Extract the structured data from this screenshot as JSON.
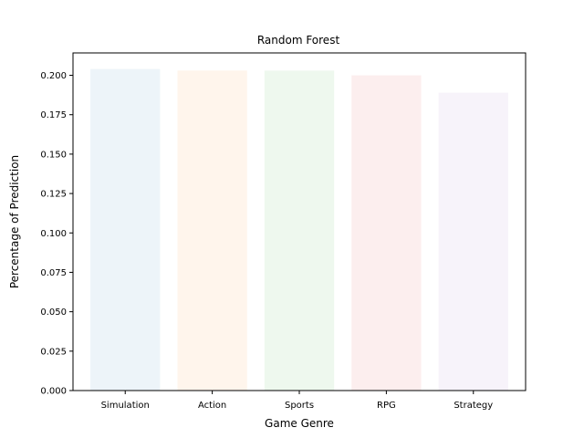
{
  "chart_data": {
    "type": "bar",
    "title": "Random Forest",
    "xlabel": "Game Genre",
    "ylabel": "Percentage of Prediction",
    "categories": [
      "Simulation",
      "Action",
      "Sports",
      "RPG",
      "Strategy"
    ],
    "values": [
      0.204,
      0.203,
      0.203,
      0.2,
      0.189
    ],
    "colors": [
      "#1f77b4",
      "#ff7f0e",
      "#2ca02c",
      "#d62728",
      "#9467bd"
    ],
    "bar_opacity": 0.08,
    "ylim": [
      0,
      0.2142
    ],
    "yticks": [
      0.0,
      0.025,
      0.05,
      0.075,
      0.1,
      0.125,
      0.15,
      0.175,
      0.2
    ],
    "ytick_labels": [
      "0.000",
      "0.025",
      "0.050",
      "0.075",
      "0.100",
      "0.125",
      "0.150",
      "0.175",
      "0.200"
    ],
    "grid": false,
    "legend": "none"
  }
}
